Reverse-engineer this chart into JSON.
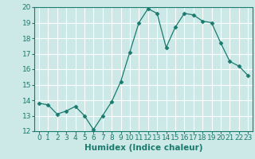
{
  "x": [
    0,
    1,
    2,
    3,
    4,
    5,
    6,
    7,
    8,
    9,
    10,
    11,
    12,
    13,
    14,
    15,
    16,
    17,
    18,
    19,
    20,
    21,
    22,
    23
  ],
  "y": [
    13.8,
    13.7,
    13.1,
    13.3,
    13.6,
    13.0,
    12.1,
    13.0,
    13.9,
    15.2,
    17.1,
    19.0,
    19.9,
    19.6,
    17.4,
    18.7,
    19.6,
    19.5,
    19.1,
    19.0,
    17.7,
    16.5,
    16.2,
    15.6
  ],
  "line_color": "#1a7a6e",
  "marker": "D",
  "marker_size": 2.5,
  "bg_color": "#cce9e7",
  "grid_color": "#ffffff",
  "xlabel": "Humidex (Indice chaleur)",
  "xlim": [
    -0.5,
    23.5
  ],
  "ylim": [
    12,
    20
  ],
  "yticks": [
    12,
    13,
    14,
    15,
    16,
    17,
    18,
    19,
    20
  ],
  "xticks": [
    0,
    1,
    2,
    3,
    4,
    5,
    6,
    7,
    8,
    9,
    10,
    11,
    12,
    13,
    14,
    15,
    16,
    17,
    18,
    19,
    20,
    21,
    22,
    23
  ],
  "xlabel_fontsize": 7.5,
  "tick_fontsize": 6.5
}
